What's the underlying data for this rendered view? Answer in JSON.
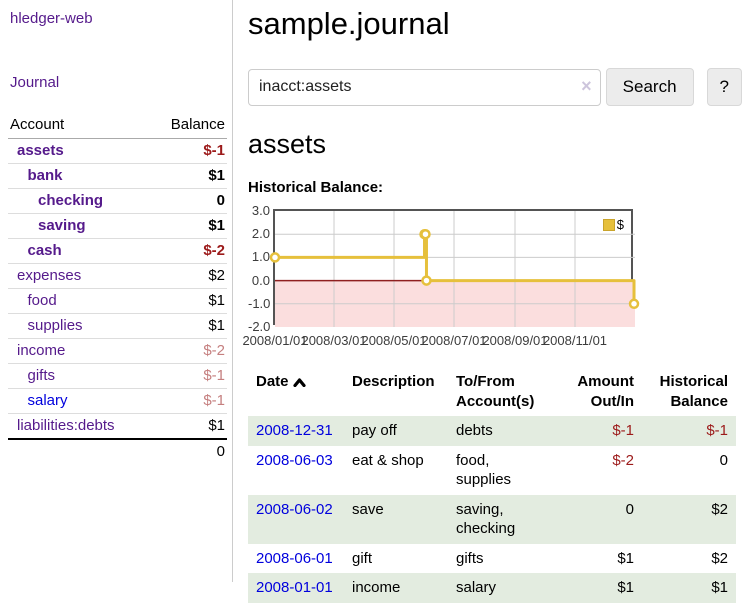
{
  "app": {
    "title": "hledger-web"
  },
  "sidebar": {
    "journal_label": "Journal",
    "accounts_table": {
      "headers": [
        "Account",
        "Balance"
      ],
      "rows": [
        {
          "account": "assets",
          "balance": "$-1",
          "indent": 1,
          "bold": true,
          "bal_class": "neg"
        },
        {
          "account": "bank",
          "balance": "$1",
          "indent": 2,
          "bold": true,
          "bal_class": ""
        },
        {
          "account": "checking",
          "balance": "0",
          "indent": 3,
          "bold": true,
          "bal_class": ""
        },
        {
          "account": "saving",
          "balance": "$1",
          "indent": 3,
          "bold": true,
          "bal_class": ""
        },
        {
          "account": "cash",
          "balance": "$-2",
          "indent": 2,
          "bold": true,
          "bal_class": "neg"
        },
        {
          "account": "expenses",
          "balance": "$2",
          "indent": 1,
          "bold": false,
          "bal_class": ""
        },
        {
          "account": "food",
          "balance": "$1",
          "indent": 2,
          "bold": false,
          "bal_class": ""
        },
        {
          "account": "supplies",
          "balance": "$1",
          "indent": 2,
          "bold": false,
          "bal_class": ""
        },
        {
          "account": "income",
          "balance": "$-2",
          "indent": 1,
          "bold": false,
          "bal_class": "dim"
        },
        {
          "account": "gifts",
          "balance": "$-1",
          "indent": 2,
          "bold": false,
          "bal_class": "dim"
        },
        {
          "account": "salary",
          "balance": "$-1",
          "indent": 2,
          "bold": false,
          "bal_class": "dim",
          "blue": true
        },
        {
          "account": "liabilities:debts",
          "balance": "$1",
          "indent": 1,
          "bold": false,
          "bal_class": ""
        }
      ],
      "total": "0"
    }
  },
  "main": {
    "title": "sample.journal",
    "search": {
      "value": "inacct:assets",
      "clear_icon": "×",
      "button_label": "Search",
      "help_label": "?"
    },
    "account_heading": "assets",
    "register": {
      "headers": [
        "Date",
        "Description",
        "To/From Account(s)",
        "Amount Out/In",
        "Historical Balance"
      ],
      "rows": [
        {
          "date": "2008-12-31",
          "description": "pay off",
          "accounts": "debts",
          "amount": "$-1",
          "amount_class": "neg",
          "balance": "$-1",
          "balance_class": "neg"
        },
        {
          "date": "2008-06-03",
          "description": "eat & shop",
          "accounts": "food, supplies",
          "amount": "$-2",
          "amount_class": "neg",
          "balance": "0",
          "balance_class": ""
        },
        {
          "date": "2008-06-02",
          "description": "save",
          "accounts": "saving, checking",
          "amount": "0",
          "amount_class": "",
          "balance": "$2",
          "balance_class": ""
        },
        {
          "date": "2008-06-01",
          "description": "gift",
          "accounts": "gifts",
          "amount": "$1",
          "amount_class": "",
          "balance": "$2",
          "balance_class": ""
        },
        {
          "date": "2008-01-01",
          "description": "income",
          "accounts": "salary",
          "amount": "$1",
          "amount_class": "",
          "balance": "$1",
          "balance_class": ""
        }
      ]
    }
  },
  "chart_data": {
    "type": "line",
    "title": "Historical Balance:",
    "step": true,
    "series": [
      {
        "name": "$",
        "color": "#e6c03c",
        "points": [
          [
            "2008-01-01",
            1
          ],
          [
            "2008-06-01",
            2
          ],
          [
            "2008-06-02",
            2
          ],
          [
            "2008-06-03",
            0
          ],
          [
            "2008-12-31",
            -1
          ]
        ]
      }
    ],
    "xlim": [
      "2008-01-01",
      "2009-01-01"
    ],
    "ylim": [
      -2,
      3
    ],
    "yticks": [
      {
        "v": 3,
        "label": "3.0"
      },
      {
        "v": 2,
        "label": "2.0"
      },
      {
        "v": 1,
        "label": "1.0"
      },
      {
        "v": 0,
        "label": "0.0"
      },
      {
        "v": -1,
        "label": "-1.0"
      },
      {
        "v": -2,
        "label": "-2.0"
      }
    ],
    "xticks": [
      {
        "date": "2008-01-01",
        "label": "2008/01/01"
      },
      {
        "date": "2008-03-01",
        "label": "2008/03/01"
      },
      {
        "date": "2008-05-01",
        "label": "2008/05/01"
      },
      {
        "date": "2008-07-01",
        "label": "2008/07/01"
      },
      {
        "date": "2008-09-01",
        "label": "2008/09/01"
      },
      {
        "date": "2008-11-01",
        "label": "2008/11/01"
      }
    ],
    "grid": true,
    "legend_position": "top-right",
    "negative_region_color": "#fbdede",
    "zero_line_color": "#8f1f1f",
    "grid_color": "#cccccc",
    "border_color": "#545454"
  }
}
